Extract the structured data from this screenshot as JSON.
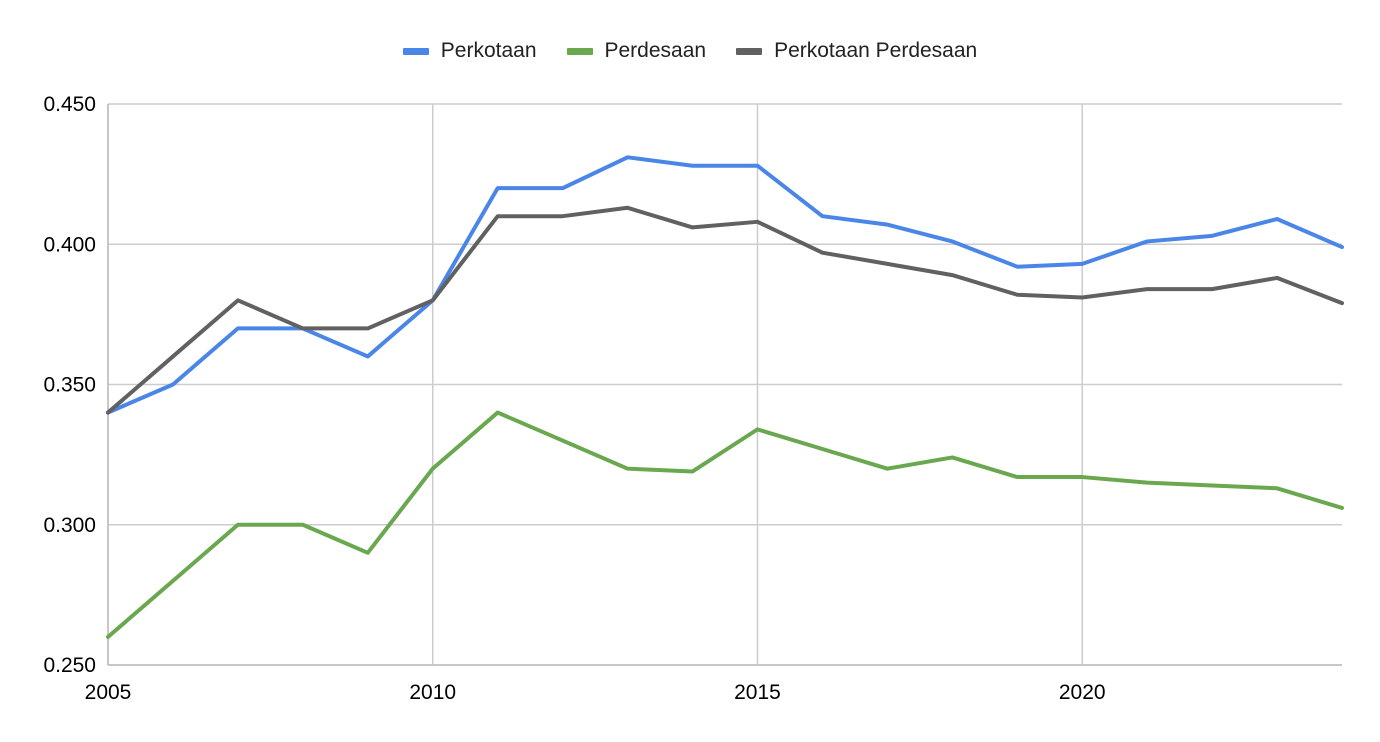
{
  "chart_data": {
    "type": "line",
    "title": "",
    "xlabel": "",
    "ylabel": "",
    "x": [
      2005,
      2006,
      2007,
      2008,
      2009,
      2010,
      2011,
      2012,
      2013,
      2014,
      2015,
      2016,
      2017,
      2018,
      2019,
      2020,
      2021,
      2022,
      2023,
      2024
    ],
    "xlim": [
      2005,
      2024
    ],
    "ylim": [
      0.25,
      0.45
    ],
    "x_ticks": [
      2005,
      2010,
      2015,
      2020
    ],
    "x_tick_labels": [
      "2005",
      "2010",
      "2015",
      "2020"
    ],
    "y_ticks": [
      0.25,
      0.3,
      0.35,
      0.4,
      0.45
    ],
    "y_tick_labels": [
      "0.250",
      "0.300",
      "0.350",
      "0.400",
      "0.450"
    ],
    "grid": true,
    "legend_position": "top-center",
    "series": [
      {
        "name": "Perkotaan",
        "color": "#4a86e8",
        "values": [
          0.34,
          0.35,
          0.37,
          0.37,
          0.36,
          0.38,
          0.42,
          0.42,
          0.431,
          0.428,
          0.428,
          0.41,
          0.407,
          0.401,
          0.392,
          0.393,
          0.401,
          0.403,
          0.409,
          0.399
        ]
      },
      {
        "name": "Perdesaan",
        "color": "#6aa84f",
        "values": [
          0.26,
          0.28,
          0.3,
          0.3,
          0.29,
          0.32,
          0.34,
          0.33,
          0.32,
          0.319,
          0.334,
          0.327,
          0.32,
          0.324,
          0.317,
          0.317,
          0.315,
          0.314,
          0.313,
          0.306
        ]
      },
      {
        "name": "Perkotaan Perdesaan",
        "color": "#616161",
        "values": [
          0.34,
          0.36,
          0.38,
          0.37,
          0.37,
          0.38,
          0.41,
          0.41,
          0.413,
          0.406,
          0.408,
          0.397,
          0.393,
          0.389,
          0.382,
          0.381,
          0.384,
          0.384,
          0.388,
          0.379
        ]
      }
    ]
  }
}
